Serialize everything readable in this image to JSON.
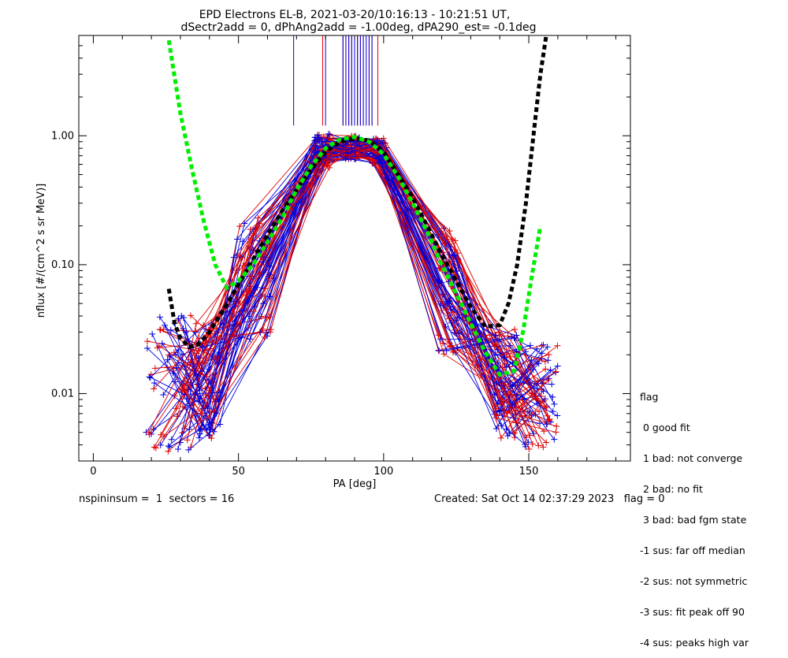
{
  "chart_data": {
    "type": "line",
    "title_line1": "EPD Electrons EL-B, 2021-03-20/10:16:13 - 10:21:51 UT,",
    "title_line2": "dSectr2add = 0, dPhAng2add = -1.00deg, dPA290_est=  -0.1deg",
    "xlabel": "PA [deg]",
    "ylabel": "nflux [#/(cm^2 s sr MeV)]",
    "xlim": [
      -5,
      185
    ],
    "ylim": [
      0.003,
      6.0
    ],
    "yscale": "log",
    "x_ticks": [
      0,
      50,
      100,
      150
    ],
    "x_tick_labels": [
      "0",
      "50",
      "100",
      "150"
    ],
    "y_ticks": [
      0.01,
      0.1,
      1.0
    ],
    "y_tick_labels": [
      "0.01",
      "0.10",
      "1.00"
    ],
    "grid": false,
    "series_colors": {
      "red": "#dd0000",
      "blue": "#0000dd",
      "green": "#00ee00",
      "black": "#000000"
    },
    "fit_green": {
      "x": [
        26,
        30,
        34,
        38,
        42,
        46,
        50,
        55,
        60,
        65,
        70,
        75,
        80,
        85,
        90,
        95,
        100,
        105,
        110,
        115,
        120,
        125,
        130,
        135,
        140,
        145,
        148,
        151,
        154
      ],
      "y": [
        5.5,
        1.5,
        0.55,
        0.22,
        0.1,
        0.066,
        0.075,
        0.1,
        0.15,
        0.23,
        0.38,
        0.58,
        0.8,
        0.94,
        0.98,
        0.9,
        0.72,
        0.48,
        0.3,
        0.18,
        0.1,
        0.06,
        0.035,
        0.021,
        0.014,
        0.015,
        0.03,
        0.08,
        0.2
      ]
    },
    "fit_black": {
      "x": [
        26,
        28,
        30,
        33,
        36,
        40,
        45,
        50,
        55,
        60,
        65,
        70,
        75,
        80,
        85,
        90,
        95,
        100,
        105,
        110,
        115,
        120,
        125,
        130,
        135,
        140,
        143,
        146,
        149,
        152,
        154,
        156
      ],
      "y": [
        0.065,
        0.035,
        0.027,
        0.023,
        0.024,
        0.03,
        0.045,
        0.07,
        0.11,
        0.17,
        0.26,
        0.38,
        0.55,
        0.75,
        0.9,
        0.95,
        0.92,
        0.75,
        0.5,
        0.33,
        0.2,
        0.12,
        0.075,
        0.047,
        0.033,
        0.034,
        0.05,
        0.1,
        0.3,
        1.2,
        3.0,
        6.5
      ]
    },
    "vertical_marks": {
      "ymin": 1.2,
      "red_x": [
        79,
        86,
        87,
        88,
        89,
        90,
        91,
        92,
        93,
        95,
        96,
        98
      ],
      "blue_x": [
        69,
        80,
        86,
        87,
        88,
        89,
        90,
        91,
        92,
        93,
        94,
        95,
        96
      ]
    }
  },
  "legend": {
    "title": "flag",
    "items": [
      " 0 good fit",
      " 1 bad: not converge",
      " 2 bad: no fit",
      " 3 bad: bad fgm state",
      "-1 sus: far off median",
      "-2 sus: not symmetric",
      "-3 sus: fit peak off 90",
      "-4 sus: peaks high var"
    ]
  },
  "footer": {
    "left": "nspininsum =  1  sectors = 16",
    "right": "Created: Sat Oct 14 02:37:29 2023   flag = 0"
  }
}
